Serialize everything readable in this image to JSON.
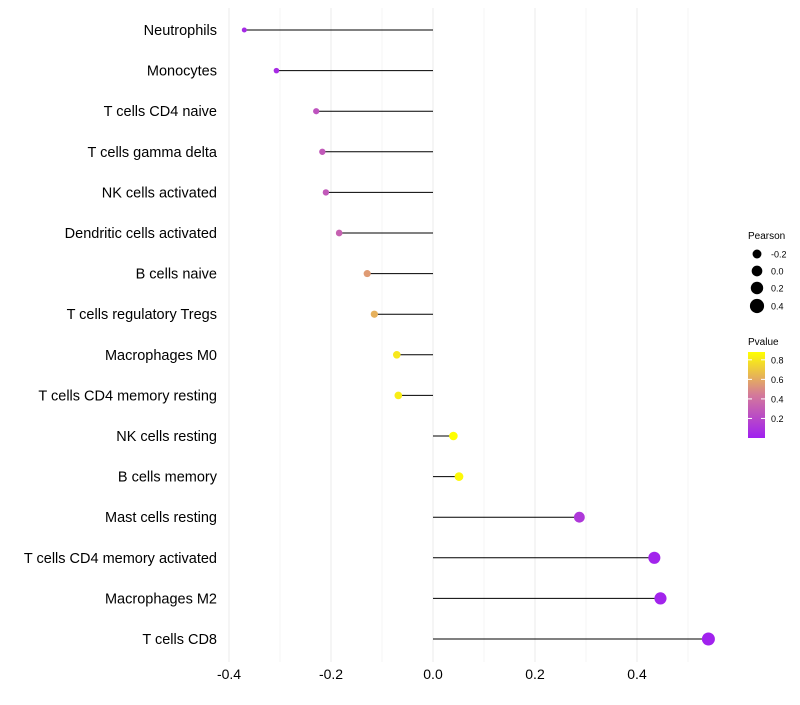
{
  "chart_data": {
    "type": "lollipop",
    "orientation": "horizontal",
    "title": "",
    "xlabel": "",
    "ylabel": "",
    "xlim": [
      -0.4,
      0.55
    ],
    "xticks": [
      -0.4,
      -0.2,
      0.0,
      0.2,
      0.4
    ],
    "xtick_labels": [
      "-0.4",
      "-0.2",
      "0.0",
      "0.2",
      "0.4"
    ],
    "grid": true,
    "categories": [
      "Neutrophils",
      "Monocytes",
      "T cells CD4 naive",
      "T cells gamma delta",
      "NK cells activated",
      "Dendritic cells activated",
      "B cells naive",
      "T cells regulatory  Tregs",
      "Macrophages M0",
      "T cells CD4 memory resting",
      "NK cells resting",
      "B cells memory",
      "Mast cells resting",
      "T cells CD4 memory activated",
      "Macrophages M2",
      "T cells CD8"
    ],
    "pearson": [
      -0.37,
      -0.307,
      -0.229,
      -0.217,
      -0.21,
      -0.184,
      -0.129,
      -0.115,
      -0.071,
      -0.068,
      0.04,
      0.051,
      0.287,
      0.434,
      0.446,
      0.54
    ],
    "pvalue": [
      0.05,
      0.06,
      0.25,
      0.28,
      0.28,
      0.32,
      0.55,
      0.62,
      0.8,
      0.82,
      0.88,
      0.86,
      0.12,
      0.02,
      0.02,
      0.01
    ],
    "legend_size": {
      "title": "Pearson",
      "labels": [
        "-0.2",
        "0.0",
        "0.2",
        "0.4"
      ],
      "values": [
        -0.2,
        0.0,
        0.2,
        0.4
      ]
    },
    "legend_color": {
      "title": "Pvalue",
      "labels": [
        "0.8",
        "0.6",
        "0.4",
        "0.2"
      ],
      "values": [
        0.8,
        0.6,
        0.4,
        0.2
      ],
      "range": [
        0.0,
        0.88
      ],
      "color_low": "#a020f0",
      "color_mid": "#d4799a",
      "color_high": "#ffff00"
    },
    "legend_position": "right"
  }
}
